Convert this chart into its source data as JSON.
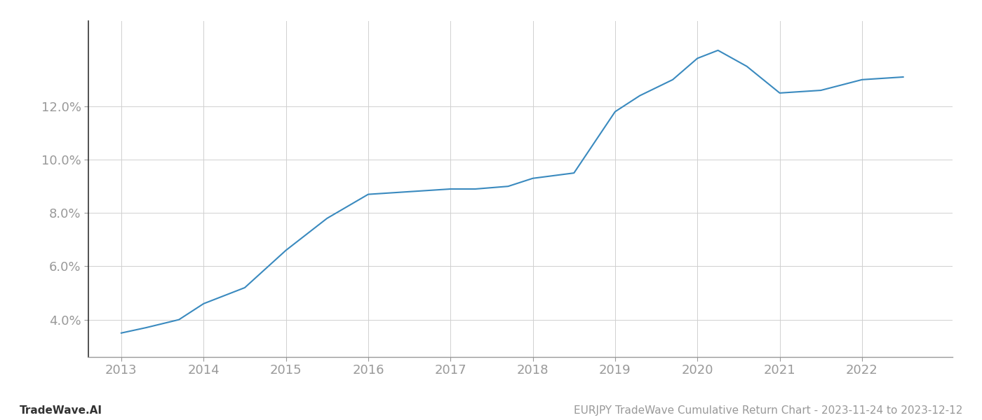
{
  "years": [
    2013,
    2013.3,
    2013.7,
    2014,
    2014.5,
    2015,
    2015.5,
    2016,
    2016.5,
    2017,
    2017.3,
    2017.7,
    2018,
    2018.5,
    2019,
    2019.3,
    2019.7,
    2020,
    2020.25,
    2020.6,
    2021,
    2021.5,
    2022,
    2022.5
  ],
  "values": [
    0.035,
    0.037,
    0.04,
    0.046,
    0.052,
    0.066,
    0.078,
    0.087,
    0.088,
    0.089,
    0.089,
    0.09,
    0.093,
    0.095,
    0.118,
    0.124,
    0.13,
    0.138,
    0.141,
    0.135,
    0.125,
    0.126,
    0.13,
    0.131
  ],
  "line_color": "#3a8abf",
  "line_width": 1.5,
  "background_color": "#ffffff",
  "grid_color": "#d0d0d0",
  "tick_color": "#999999",
  "label_color": "#999999",
  "yticks": [
    0.04,
    0.06,
    0.08,
    0.1,
    0.12
  ],
  "xtick_labels": [
    "2013",
    "2014",
    "2015",
    "2016",
    "2017",
    "2018",
    "2019",
    "2020",
    "2021",
    "2022"
  ],
  "xtick_values": [
    2013,
    2014,
    2015,
    2016,
    2017,
    2018,
    2019,
    2020,
    2021,
    2022
  ],
  "ylim": [
    0.026,
    0.152
  ],
  "xlim": [
    2012.6,
    2023.1
  ],
  "footer_left": "TradeWave.AI",
  "footer_right": "EURJPY TradeWave Cumulative Return Chart - 2023-11-24 to 2023-12-12",
  "footer_fontsize": 11,
  "tick_fontsize": 13,
  "spine_color": "#999999",
  "left_spine_color": "#333333"
}
